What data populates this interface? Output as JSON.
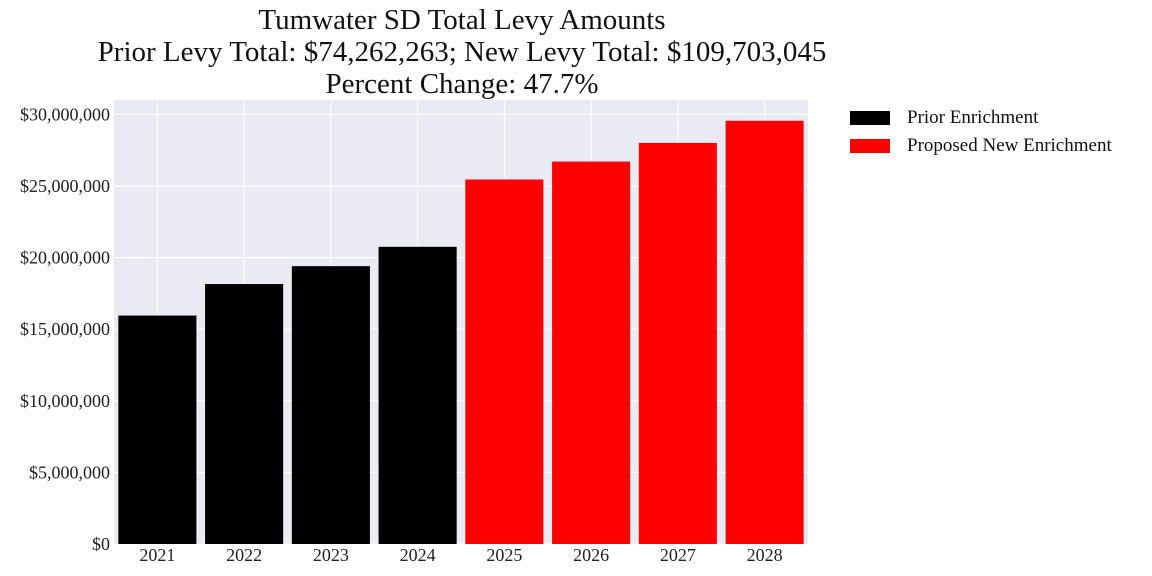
{
  "chart_data": {
    "type": "bar",
    "title_lines": [
      "Tumwater SD Total Levy Amounts",
      "Prior Levy Total:  $74,262,263; New Levy Total: $109,703,045",
      "Percent Change: 47.7%"
    ],
    "categories": [
      "2021",
      "2022",
      "2023",
      "2024",
      "2025",
      "2026",
      "2027",
      "2028"
    ],
    "series": [
      {
        "name": "Prior Enrichment",
        "color": "#000000",
        "values": [
          15950000,
          18150000,
          19400000,
          20750000,
          null,
          null,
          null,
          null
        ]
      },
      {
        "name": "Proposed New Enrichment",
        "color": "#ff0000",
        "values": [
          null,
          null,
          null,
          null,
          25450000,
          26700000,
          28000000,
          29550000
        ]
      }
    ],
    "ylim": [
      0,
      31000000
    ],
    "y_ticks": [
      0,
      5000000,
      10000000,
      15000000,
      20000000,
      25000000,
      30000000
    ],
    "y_tick_labels": [
      "$0",
      "$5,000,000",
      "$10,000,000",
      "$15,000,000",
      "$20,000,000",
      "$25,000,000",
      "$30,000,000"
    ],
    "xlabel": "",
    "ylabel": "",
    "grid": true,
    "plot_background": "#eaeaf2",
    "legend_position": "outside-top-right"
  }
}
